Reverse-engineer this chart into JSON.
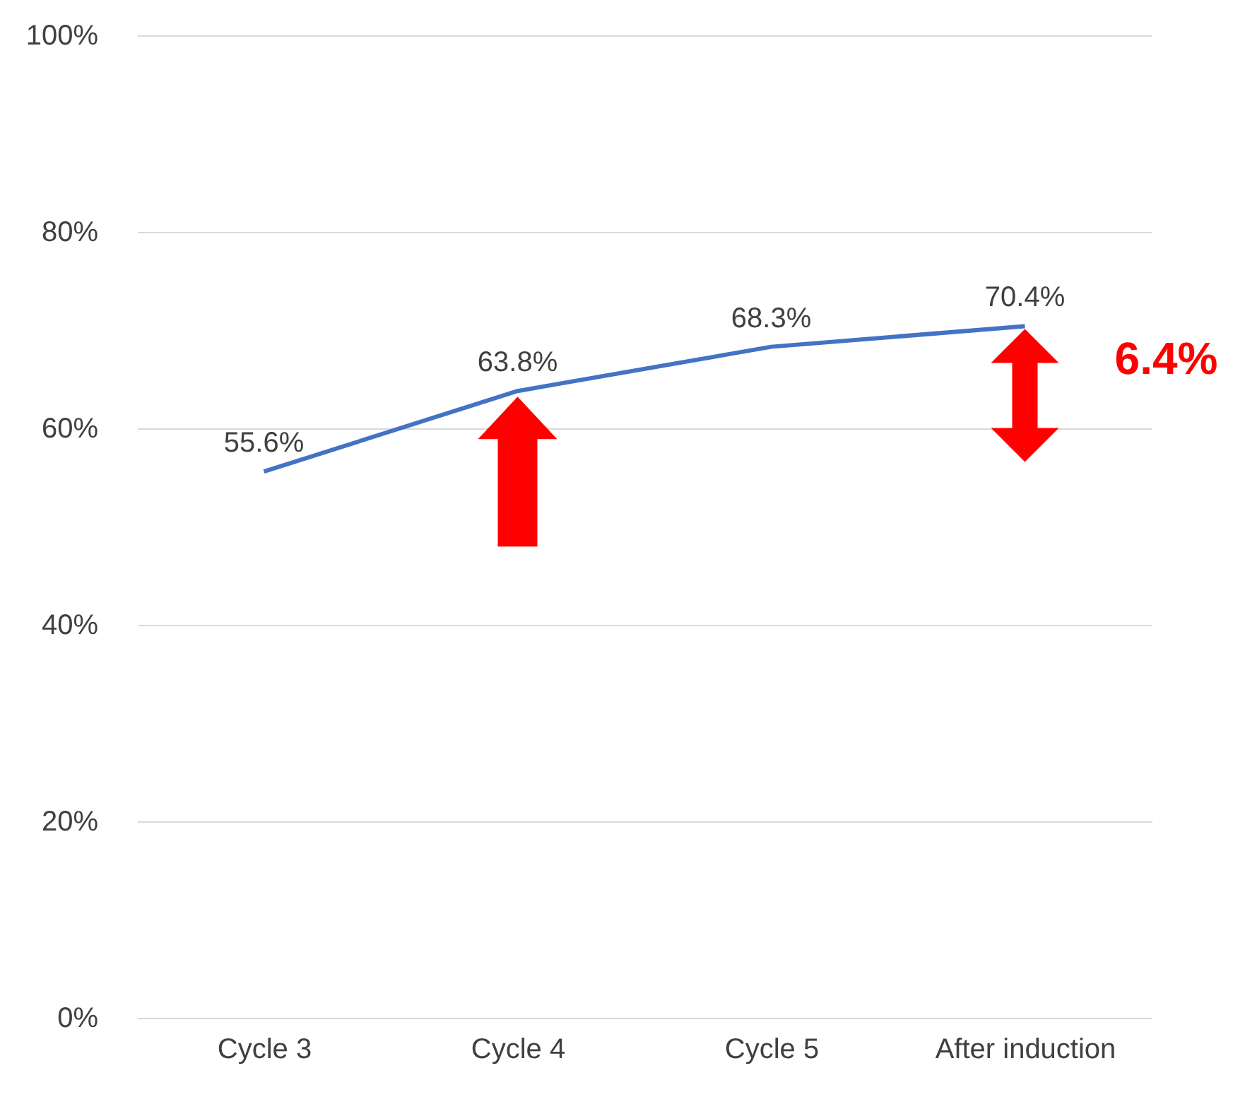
{
  "chart_data": {
    "type": "line",
    "categories": [
      "Cycle 3",
      "Cycle 4",
      "Cycle 5",
      "After induction"
    ],
    "series": [
      {
        "color": "#4472c4",
        "values": [
          55.6,
          63.8,
          68.3,
          70.4
        ]
      }
    ],
    "value_labels": [
      "55.6%",
      "63.8%",
      "68.3%",
      "70.4%"
    ],
    "ylim": [
      0,
      100
    ],
    "yticks": [
      {
        "value": 0,
        "label": "0%"
      },
      {
        "value": 20,
        "label": "20%"
      },
      {
        "value": 40,
        "label": "40%"
      },
      {
        "value": 60,
        "label": "60%"
      },
      {
        "value": 80,
        "label": "80%"
      },
      {
        "value": 100,
        "label": "100%"
      }
    ],
    "grid": "y",
    "marker": "none",
    "line_style": "solid",
    "annotations": [
      "6.4%"
    ]
  }
}
